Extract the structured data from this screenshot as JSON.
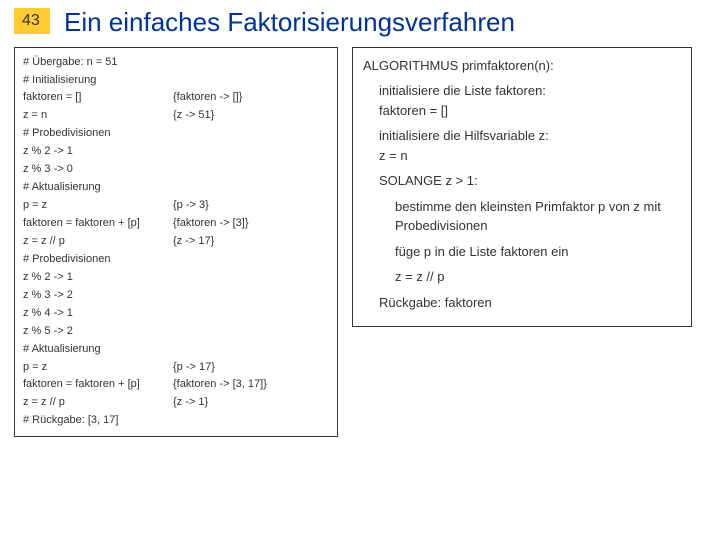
{
  "slide_number": "43",
  "title": "Ein einfaches Faktorisierungsverfahren",
  "colors": {
    "title": "#003399",
    "slide_num_bg": "#ffcc33",
    "slide_num_fg": "#333333",
    "panel_border": "#333333",
    "text": "#333333",
    "background": "#ffffff"
  },
  "left": {
    "rows": [
      {
        "c1": "# Übergabe: n = 51",
        "c2": ""
      },
      {
        "c1": "# Initialisierung",
        "c2": ""
      },
      {
        "c1": "faktoren = []",
        "c2": "{faktoren -> []}"
      },
      {
        "c1": "z = n",
        "c2": "{z -> 51}"
      },
      {
        "c1": "# Probedivisionen",
        "c2": ""
      },
      {
        "c1": "z % 2 -> 1",
        "c2": ""
      },
      {
        "c1": "z % 3 -> 0",
        "c2": ""
      },
      {
        "c1": "# Aktualisierung",
        "c2": ""
      },
      {
        "c1": "p = z",
        "c2": "{p -> 3}"
      },
      {
        "c1": "faktoren = faktoren + [p]",
        "c2": "{faktoren -> [3]}"
      },
      {
        "c1": "z = z // p",
        "c2": "{z -> 17}"
      },
      {
        "c1": "# Probedivisionen",
        "c2": ""
      },
      {
        "c1": "z % 2 -> 1",
        "c2": ""
      },
      {
        "c1": "z % 3 -> 2",
        "c2": ""
      },
      {
        "c1": "z % 4 -> 1",
        "c2": ""
      },
      {
        "c1": "z % 5 -> 2",
        "c2": ""
      },
      {
        "c1": "# Aktualisierung",
        "c2": ""
      },
      {
        "c1": "p = z",
        "c2": "{p -> 17}"
      },
      {
        "c1": "faktoren = faktoren + [p]",
        "c2": "{faktoren -> [3, 17]}"
      },
      {
        "c1": "z = z // p",
        "c2": "{z -> 1}"
      },
      {
        "c1": "# Rückgabe: [3, 17]",
        "c2": ""
      }
    ]
  },
  "right": {
    "title": "ALGORITHMUS primfaktoren(n):",
    "step1a": "initialisiere die Liste faktoren:",
    "step1b": "faktoren = []",
    "step2a": "initialisiere die Hilfsvariable z:",
    "step2b": "z = n",
    "step3": "SOLANGE z > 1:",
    "step4": "bestimme den kleinsten Primfaktor p von z mit Probedivisionen",
    "step5": "füge p in die Liste faktoren ein",
    "step6": "z = z // p",
    "step7": "Rückgabe: faktoren"
  }
}
